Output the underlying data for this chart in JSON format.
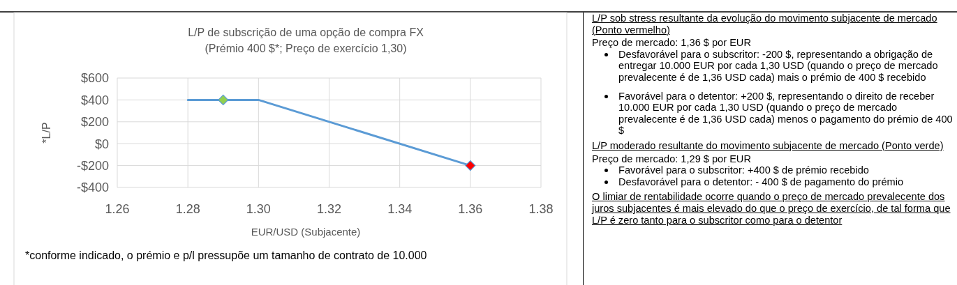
{
  "chart_data": [
    {
      "type": "line",
      "title": "L/P de subscrição de uma opção de compra FX",
      "subtitle": "(Prémio 400 $*; Preço de exercício 1,30)",
      "xlabel": "EUR/USD (Subjacente)",
      "ylabel": "*L/P",
      "annotations": [
        "*conforme indicado, o prémio e p/l pressupõe um tamanho de contrato de 10.000"
      ],
      "series": [
        {
          "type": "line",
          "color": "#5b9bd5",
          "x": [
            1.28,
            1.3,
            1.36
          ],
          "values": [
            400,
            400,
            -200
          ]
        },
        {
          "type": "scatter",
          "color": "#92d050",
          "x": [
            1.29
          ],
          "values": [
            400
          ],
          "marker": "diamond"
        },
        {
          "type": "scatter",
          "color": "#ff0000",
          "x": [
            1.36
          ],
          "values": [
            -200
          ],
          "marker": "diamond"
        }
      ],
      "xlim": [
        1.26,
        1.38
      ],
      "xticks": [
        1.26,
        1.28,
        {
          "value": 1.3,
          "label": "1.30"
        },
        1.32,
        1.34,
        1.36,
        1.38
      ],
      "ylim": [
        -400,
        600
      ],
      "yticks": [
        {
          "value": -400,
          "label": "-$400"
        },
        {
          "value": -200,
          "label": "-$200"
        },
        {
          "value": 0,
          "label": "$0"
        },
        {
          "value": 200,
          "label": "$200"
        },
        {
          "value": 400,
          "label": "$400"
        },
        {
          "value": 600,
          "label": "$600"
        }
      ],
      "grid": true,
      "line_style": "solid"
    },
    {
      "type": "other",
      "annotations": [
        "L/P sob stress resultante da evolução do movimento subjacente de mercado (Ponto vermelho)",
        "Preço de mercado: 1,36 $ por EUR",
        "Desfavorável para o subscritor: -200 $, representando a obrigação de entregar 10.000 EUR por cada 1,30 USD (quando o preço de mercado prevalecente é de 1,36 USD cada) mais o prémio de 400 $ recebido",
        "Favorável para o detentor: +200 $, representando o direito de receber 10.000 EUR por cada 1,30 USD (quando o preço de mercado prevalecente é de 1,36 USD cada) menos o pagamento do prémio de 400 $",
        "L/P moderado resultante do movimento subjacente de mercado (Ponto verde)",
        "Preço de mercado: 1,29 $ por EUR",
        "Favorável para o subscritor: +400 $ de prémio recebido",
        "Desfavorável para o detentor: - 400 $ de pagamento do prémio",
        "O limiar de rentabilidade ocorre quando o preço de mercado prevalecente dos juros subjacentes é mais elevado do que o preço de exercício, de tal forma que L/P é zero tanto para o subscritor como para o detentor"
      ]
    }
  ]
}
